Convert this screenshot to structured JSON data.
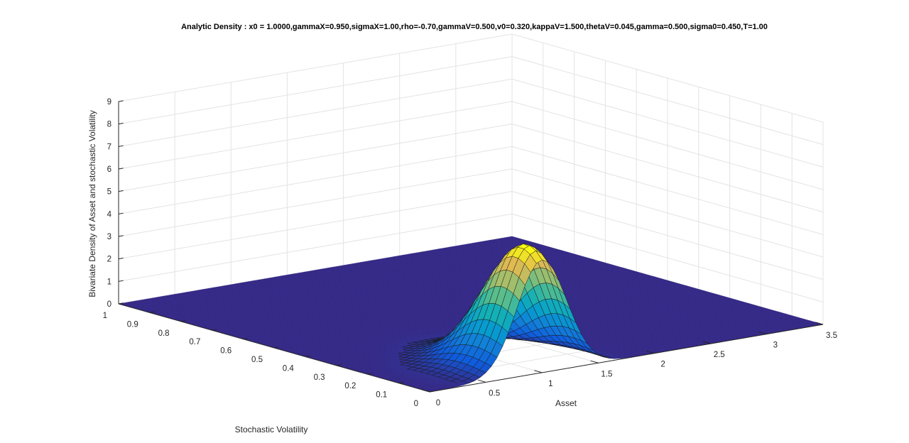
{
  "chart_data": {
    "type": "surface",
    "title": "Analytic Density : x0 = 1.0000,gammaX=0.950,sigmaX=1.00,rho=-0.70,gammaV=0.500,v0=0.320,kappaV=1.500,thetaV=0.045,gamma=0.500,sigma0=0.450,T=1.00",
    "xlabel": "Asset",
    "ylabel": "Stochastic Volatility",
    "zlabel": "Bivariate Density of Asset and stochastic Volatility",
    "xlim": [
      0,
      3.5
    ],
    "ylim": [
      0,
      1
    ],
    "zlim": [
      0,
      9
    ],
    "x_ticks": [
      "0",
      "0.5",
      "1",
      "1.5",
      "2",
      "2.5",
      "3",
      "3.5"
    ],
    "y_ticks": [
      "0",
      "0.1",
      "0.2",
      "0.3",
      "0.4",
      "0.5",
      "0.6",
      "0.7",
      "0.8",
      "0.9",
      "1"
    ],
    "z_ticks": [
      "0",
      "1",
      "2",
      "3",
      "4",
      "5",
      "6",
      "7",
      "8",
      "9"
    ],
    "grid": true,
    "colormap": "parula",
    "surface_peak": {
      "asset": 1.0,
      "volatility": 0.045,
      "density": 5.4
    }
  }
}
